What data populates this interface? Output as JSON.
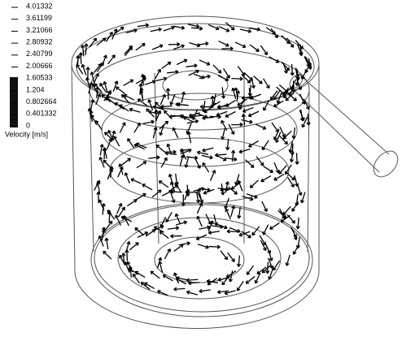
{
  "legend": {
    "ticks": [
      4.01332,
      3.61199,
      3.21066,
      2.80932,
      2.40799,
      2.00666,
      1.60533,
      1.204,
      0.802664,
      0.401332,
      0
    ],
    "title": "Velocity [m/s]"
  }
}
